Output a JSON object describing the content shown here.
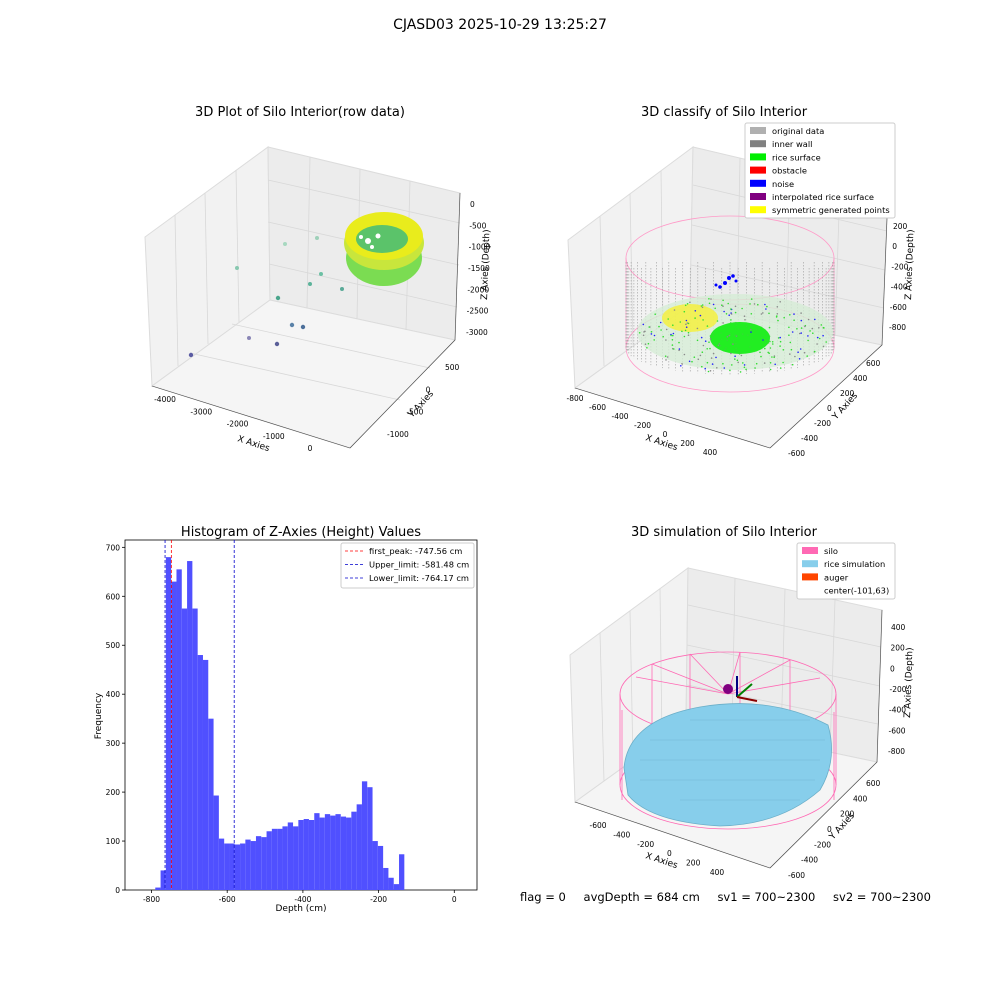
{
  "suptitle": "CJASD03 2025-10-29 13:25:27",
  "status": {
    "flag": "flag = 0",
    "avg_depth": "avgDepth = 684 cm",
    "sv1": "sv1 = 700~2300",
    "sv2": "sv2 = 700~2300"
  },
  "colors": {
    "histogram_bar": "#5050ff",
    "first_peak_line": "#ff0000",
    "limit_lines": "#0000cc",
    "silo": "#ff69b4",
    "rice_simulation": "#87ceeb",
    "auger": "#ff4500",
    "inner_wall": "#808080",
    "rice_surface": "#00ee00",
    "noise": "#0000ff",
    "symmetric_points": "#ffff00"
  },
  "panel_raw": {
    "title": "3D Plot of Silo Interior(row data)",
    "xlabel": "X Axies",
    "ylabel": "Y Axies",
    "zlabel": "Z Axies (Depth)",
    "x_ticks": [
      "-4000",
      "-3000",
      "-2000",
      "-1000",
      "0"
    ],
    "y_ticks": [
      "500",
      "0",
      "-500",
      "-1000"
    ],
    "z_ticks": [
      "0",
      "-500",
      "-1000",
      "-1500",
      "-2000",
      "-2500",
      "-3000"
    ]
  },
  "panel_classify": {
    "title": "3D classify of Silo Interior",
    "xlabel": "X Axies",
    "ylabel": "Y Axies",
    "zlabel": "Z Axies (Depth)",
    "x_ticks": [
      "-800",
      "-600",
      "-400",
      "-200",
      "0",
      "200",
      "400"
    ],
    "y_ticks": [
      "600",
      "400",
      "200",
      "0",
      "-200",
      "-400",
      "-600"
    ],
    "z_ticks": [
      "200",
      "0",
      "-200",
      "-400",
      "-600",
      "-800"
    ],
    "legend": [
      {
        "label": "original data",
        "color": "#b0b0b0"
      },
      {
        "label": "inner wall",
        "color": "#808080"
      },
      {
        "label": "rice surface",
        "color": "#00ee00"
      },
      {
        "label": "obstacle",
        "color": "#ff0000"
      },
      {
        "label": "noise",
        "color": "#0000ff"
      },
      {
        "label": "interpolated rice surface",
        "color": "#800080"
      },
      {
        "label": "symmetric generated points",
        "color": "#ffff00"
      }
    ]
  },
  "panel_sim": {
    "title": "3D simulation of Silo Interior",
    "xlabel": "X Axies",
    "ylabel": "Y Axies",
    "zlabel": "Z Axies (Depth)",
    "x_ticks": [
      "-600",
      "-400",
      "-200",
      "0",
      "200",
      "400"
    ],
    "y_ticks": [
      "600",
      "400",
      "200",
      "0",
      "-200",
      "-400",
      "-600"
    ],
    "z_ticks": [
      "400",
      "200",
      "0",
      "-200",
      "-400",
      "-600",
      "-800"
    ],
    "legend": [
      {
        "label": "silo",
        "color": "#ff69b4"
      },
      {
        "label": "rice simulation",
        "color": "#87ceeb"
      },
      {
        "label": "auger",
        "color": "#ff4500"
      },
      {
        "label": "center(-101,63)",
        "color": ""
      }
    ]
  },
  "chart_data": {
    "type": "bar",
    "title": "Histogram of Z-Axies (Height) Values",
    "xlabel": "Depth (cm)",
    "ylabel": "Frequency",
    "xlim": [
      -870,
      60
    ],
    "ylim": [
      0,
      715
    ],
    "x_ticks": [
      -800,
      -600,
      -400,
      -200,
      0
    ],
    "y_ticks": [
      0,
      100,
      200,
      300,
      400,
      500,
      600,
      700
    ],
    "bin_width": 14,
    "bin_start": -790,
    "values": [
      5,
      40,
      680,
      630,
      655,
      575,
      672,
      575,
      480,
      470,
      350,
      193,
      105,
      95,
      95,
      93,
      95,
      103,
      100,
      110,
      108,
      120,
      125,
      125,
      130,
      138,
      130,
      143,
      145,
      143,
      157,
      148,
      155,
      152,
      155,
      150,
      148,
      160,
      175,
      222,
      210,
      100,
      90,
      45,
      25,
      12,
      73
    ],
    "vlines": [
      {
        "label": "first_peak: -747.56 cm",
        "x": -747.56,
        "style": "red"
      },
      {
        "label": "Upper_limit: -581.48 cm",
        "x": -581.48,
        "style": "blue"
      },
      {
        "label": "Lower_limit: -764.17 cm",
        "x": -764.17,
        "style": "blue"
      }
    ]
  }
}
